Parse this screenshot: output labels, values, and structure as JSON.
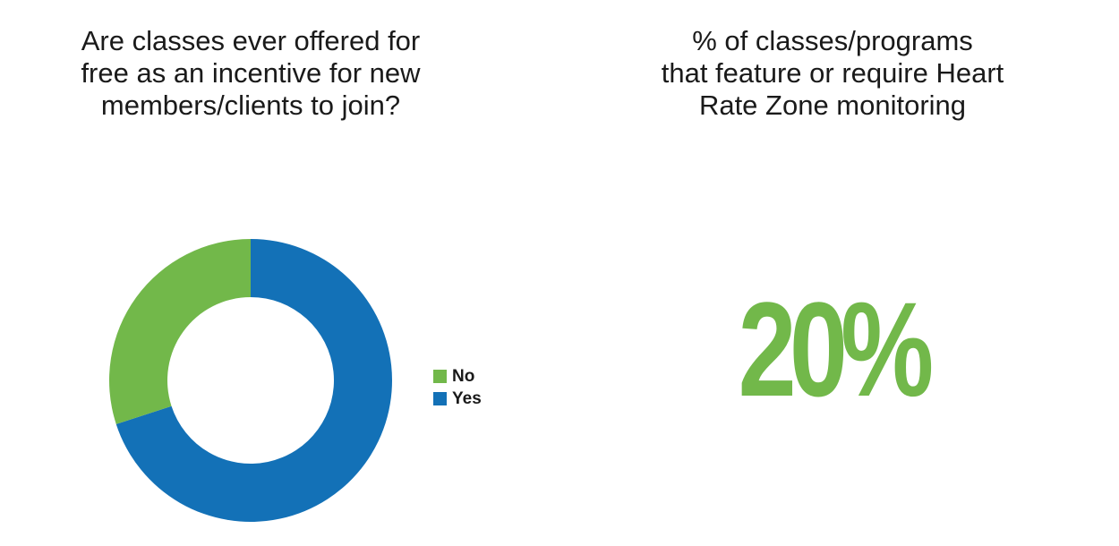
{
  "left_panel": {
    "title_lines": [
      "Are classes ever offered for",
      "free as an incentive for new",
      "members/clients to join?"
    ]
  },
  "right_panel": {
    "title_lines": [
      "% of classes/programs",
      "that feature or require Heart",
      "Rate Zone monitoring"
    ],
    "stat_value": "20%",
    "stat_color": "#72b84a"
  },
  "chart_data": {
    "type": "pie",
    "variant": "donut",
    "title": "Are classes ever offered for free as an incentive for new members/clients to join?",
    "categories": [
      "No",
      "Yes"
    ],
    "values": [
      30,
      70
    ],
    "unit": "%",
    "colors": [
      "#72b84a",
      "#1371b7"
    ],
    "start_angle_deg": 0,
    "direction": "counterclockwise-from-top for No, remainder Yes",
    "legend_position": "right",
    "data_labels": false
  }
}
